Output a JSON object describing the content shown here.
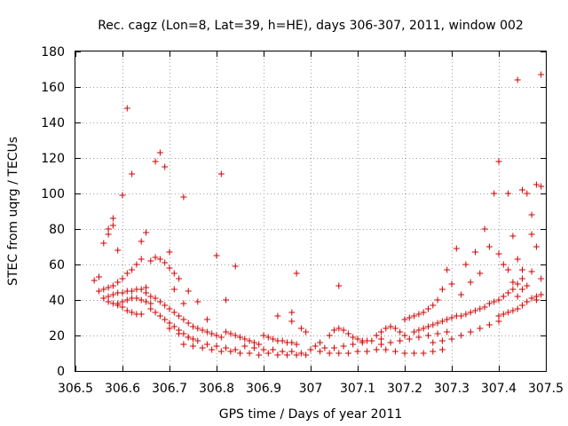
{
  "chart_data": {
    "type": "scatter",
    "title": "Rec. cagz (Lon=8, Lat=39, h=HE), days 306-307, 2011, window 002",
    "xlabel": "GPS time / Days of year 2011",
    "ylabel": "STEC from uqrg / TECUs",
    "xlim": [
      306.5,
      307.5
    ],
    "ylim": [
      0,
      180
    ],
    "xticks": [
      "306.5",
      "306.6",
      "306.7",
      "306.8",
      "306.9",
      "307",
      "307.1",
      "307.2",
      "307.3",
      "307.4",
      "307.5"
    ],
    "yticks": [
      "0",
      "20",
      "40",
      "60",
      "80",
      "100",
      "120",
      "140",
      "160",
      "180"
    ],
    "grid": true,
    "marker": "plus",
    "color": "#d00000",
    "series": [
      {
        "points": [
          [
            306.54,
            51
          ],
          [
            306.55,
            53
          ],
          [
            306.56,
            72
          ],
          [
            306.57,
            77
          ],
          [
            306.57,
            80
          ],
          [
            306.58,
            82
          ],
          [
            306.58,
            86
          ],
          [
            306.59,
            68
          ],
          [
            306.6,
            99
          ],
          [
            306.61,
            148
          ],
          [
            306.62,
            111
          ],
          [
            306.64,
            73
          ],
          [
            306.65,
            78
          ],
          [
            306.67,
            118
          ],
          [
            306.68,
            123
          ],
          [
            306.69,
            115
          ],
          [
            306.73,
            98
          ],
          [
            306.81,
            111
          ],
          [
            306.8,
            65
          ],
          [
            306.84,
            59
          ],
          [
            306.97,
            55
          ],
          [
            307.06,
            48
          ],
          [
            306.55,
            45
          ],
          [
            306.56,
            41
          ],
          [
            306.57,
            39
          ],
          [
            306.58,
            38
          ],
          [
            306.59,
            37
          ],
          [
            306.6,
            36
          ],
          [
            306.61,
            34
          ],
          [
            306.62,
            33
          ],
          [
            306.63,
            32
          ],
          [
            306.64,
            32
          ],
          [
            306.56,
            46
          ],
          [
            306.57,
            47
          ],
          [
            306.58,
            48
          ],
          [
            306.59,
            50
          ],
          [
            306.6,
            52
          ],
          [
            306.61,
            55
          ],
          [
            306.62,
            57
          ],
          [
            306.63,
            60
          ],
          [
            306.64,
            63
          ],
          [
            306.57,
            42
          ],
          [
            306.58,
            43
          ],
          [
            306.59,
            44
          ],
          [
            306.6,
            44
          ],
          [
            306.61,
            45
          ],
          [
            306.62,
            45
          ],
          [
            306.63,
            46
          ],
          [
            306.64,
            46
          ],
          [
            306.65,
            47
          ],
          [
            306.59,
            38
          ],
          [
            306.6,
            39
          ],
          [
            306.61,
            40
          ],
          [
            306.62,
            41
          ],
          [
            306.63,
            41
          ],
          [
            306.64,
            40
          ],
          [
            306.65,
            39
          ],
          [
            306.66,
            38
          ],
          [
            306.66,
            35
          ],
          [
            306.67,
            33
          ],
          [
            306.68,
            31
          ],
          [
            306.69,
            29
          ],
          [
            306.7,
            27
          ],
          [
            306.71,
            25
          ],
          [
            306.72,
            23
          ],
          [
            306.73,
            21
          ],
          [
            306.74,
            19
          ],
          [
            306.75,
            18
          ],
          [
            306.66,
            62
          ],
          [
            306.67,
            64
          ],
          [
            306.68,
            63
          ],
          [
            306.69,
            61
          ],
          [
            306.7,
            58
          ],
          [
            306.71,
            55
          ],
          [
            306.72,
            52
          ],
          [
            306.65,
            44
          ],
          [
            306.66,
            42
          ],
          [
            306.67,
            41
          ],
          [
            306.68,
            39
          ],
          [
            306.69,
            37
          ],
          [
            306.7,
            35
          ],
          [
            306.71,
            33
          ],
          [
            306.72,
            31
          ],
          [
            306.73,
            29
          ],
          [
            306.74,
            27
          ],
          [
            306.75,
            25
          ],
          [
            306.76,
            24
          ],
          [
            306.77,
            23
          ],
          [
            306.78,
            22
          ],
          [
            306.79,
            21
          ],
          [
            306.8,
            20
          ],
          [
            306.81,
            19
          ],
          [
            306.7,
            24
          ],
          [
            306.72,
            21
          ],
          [
            306.74,
            19
          ],
          [
            306.76,
            17
          ],
          [
            306.78,
            15
          ],
          [
            306.8,
            14
          ],
          [
            306.82,
            13
          ],
          [
            306.84,
            12
          ],
          [
            306.73,
            15
          ],
          [
            306.75,
            14
          ],
          [
            306.77,
            13
          ],
          [
            306.79,
            12
          ],
          [
            306.81,
            11
          ],
          [
            306.83,
            11
          ],
          [
            306.85,
            10
          ],
          [
            306.87,
            10
          ],
          [
            306.89,
            9
          ],
          [
            306.82,
            22
          ],
          [
            306.83,
            21
          ],
          [
            306.84,
            20
          ],
          [
            306.85,
            19
          ],
          [
            306.86,
            18
          ],
          [
            306.87,
            17
          ],
          [
            306.88,
            16
          ],
          [
            306.89,
            15
          ],
          [
            306.86,
            14
          ],
          [
            306.88,
            13
          ],
          [
            306.9,
            12
          ],
          [
            306.92,
            12
          ],
          [
            306.94,
            11
          ],
          [
            306.96,
            11
          ],
          [
            306.98,
            10
          ],
          [
            306.9,
            20
          ],
          [
            306.91,
            19
          ],
          [
            306.92,
            18
          ],
          [
            306.93,
            17
          ],
          [
            306.94,
            17
          ],
          [
            306.95,
            16
          ],
          [
            306.96,
            16
          ],
          [
            306.97,
            15
          ],
          [
            306.91,
            10
          ],
          [
            306.93,
            9
          ],
          [
            306.95,
            9
          ],
          [
            306.97,
            9
          ],
          [
            306.99,
            9
          ],
          [
            306.93,
            31
          ],
          [
            306.96,
            33
          ],
          [
            306.96,
            28
          ],
          [
            306.98,
            24
          ],
          [
            306.99,
            22
          ],
          [
            306.78,
            29
          ],
          [
            306.76,
            39
          ],
          [
            306.82,
            40
          ],
          [
            306.74,
            45
          ],
          [
            306.7,
            67
          ],
          [
            306.71,
            46
          ],
          [
            306.73,
            38
          ],
          [
            307.0,
            12
          ],
          [
            307.02,
            11
          ],
          [
            307.04,
            10
          ],
          [
            307.06,
            10
          ],
          [
            307.08,
            10
          ],
          [
            307.1,
            11
          ],
          [
            307.12,
            11
          ],
          [
            307.14,
            12
          ],
          [
            307.02,
            16
          ],
          [
            307.04,
            20
          ],
          [
            307.05,
            23
          ],
          [
            307.06,
            24
          ],
          [
            307.07,
            23
          ],
          [
            307.08,
            21
          ],
          [
            307.09,
            19
          ],
          [
            307.1,
            18
          ],
          [
            307.11,
            17
          ],
          [
            307.12,
            17
          ],
          [
            307.01,
            14
          ],
          [
            307.03,
            13
          ],
          [
            307.05,
            13
          ],
          [
            307.07,
            14
          ],
          [
            307.09,
            15
          ],
          [
            307.11,
            16
          ],
          [
            307.13,
            17
          ],
          [
            307.15,
            18
          ],
          [
            307.14,
            20
          ],
          [
            307.15,
            22
          ],
          [
            307.16,
            24
          ],
          [
            307.17,
            25
          ],
          [
            307.18,
            24
          ],
          [
            307.19,
            22
          ],
          [
            307.2,
            20
          ],
          [
            307.16,
            12
          ],
          [
            307.18,
            11
          ],
          [
            307.2,
            10
          ],
          [
            307.22,
            10
          ],
          [
            307.24,
            10
          ],
          [
            307.26,
            11
          ],
          [
            307.28,
            12
          ],
          [
            307.15,
            15
          ],
          [
            307.17,
            16
          ],
          [
            307.19,
            17
          ],
          [
            307.21,
            18
          ],
          [
            307.23,
            19
          ],
          [
            307.25,
            20
          ],
          [
            307.27,
            21
          ],
          [
            307.29,
            22
          ],
          [
            307.2,
            29
          ],
          [
            307.21,
            30
          ],
          [
            307.22,
            31
          ],
          [
            307.23,
            32
          ],
          [
            307.24,
            33
          ],
          [
            307.25,
            35
          ],
          [
            307.26,
            37
          ],
          [
            307.27,
            40
          ],
          [
            307.22,
            22
          ],
          [
            307.23,
            23
          ],
          [
            307.24,
            24
          ],
          [
            307.25,
            25
          ],
          [
            307.26,
            26
          ],
          [
            307.27,
            27
          ],
          [
            307.28,
            28
          ],
          [
            307.29,
            29
          ],
          [
            307.26,
            16
          ],
          [
            307.28,
            17
          ],
          [
            307.3,
            18
          ],
          [
            307.32,
            20
          ],
          [
            307.34,
            22
          ],
          [
            307.36,
            24
          ],
          [
            307.38,
            26
          ],
          [
            307.4,
            28
          ],
          [
            307.28,
            46
          ],
          [
            307.29,
            57
          ],
          [
            307.3,
            49
          ],
          [
            307.31,
            69
          ],
          [
            307.32,
            43
          ],
          [
            307.33,
            60
          ],
          [
            307.34,
            50
          ],
          [
            307.35,
            67
          ],
          [
            307.3,
            30
          ],
          [
            307.31,
            31
          ],
          [
            307.32,
            31
          ],
          [
            307.33,
            32
          ],
          [
            307.34,
            33
          ],
          [
            307.35,
            34
          ],
          [
            307.36,
            35
          ],
          [
            307.37,
            36
          ],
          [
            307.36,
            55
          ],
          [
            307.37,
            80
          ],
          [
            307.38,
            70
          ],
          [
            307.39,
            100
          ],
          [
            307.4,
            66
          ],
          [
            307.4,
            118
          ],
          [
            307.41,
            60
          ],
          [
            307.42,
            100
          ],
          [
            307.38,
            38
          ],
          [
            307.39,
            39
          ],
          [
            307.4,
            40
          ],
          [
            307.41,
            42
          ],
          [
            307.42,
            44
          ],
          [
            307.43,
            46
          ],
          [
            307.44,
            49
          ],
          [
            307.45,
            52
          ],
          [
            307.42,
            57
          ],
          [
            307.43,
            76
          ],
          [
            307.44,
            63
          ],
          [
            307.45,
            57
          ],
          [
            307.46,
            100
          ],
          [
            307.47,
            88
          ],
          [
            307.47,
            77
          ],
          [
            307.48,
            105
          ],
          [
            307.44,
            164
          ],
          [
            307.49,
            167
          ],
          [
            307.49,
            104
          ],
          [
            307.48,
            70
          ],
          [
            307.45,
            102
          ],
          [
            307.4,
            31
          ],
          [
            307.41,
            32
          ],
          [
            307.42,
            33
          ],
          [
            307.43,
            34
          ],
          [
            307.44,
            35
          ],
          [
            307.45,
            37
          ],
          [
            307.46,
            39
          ],
          [
            307.47,
            41
          ],
          [
            307.48,
            42
          ],
          [
            307.49,
            43
          ],
          [
            307.43,
            50
          ],
          [
            307.45,
            46
          ],
          [
            307.47,
            56
          ],
          [
            307.49,
            52
          ],
          [
            307.48,
            40
          ],
          [
            307.46,
            48
          ],
          [
            307.44,
            42
          ]
        ]
      }
    ]
  }
}
